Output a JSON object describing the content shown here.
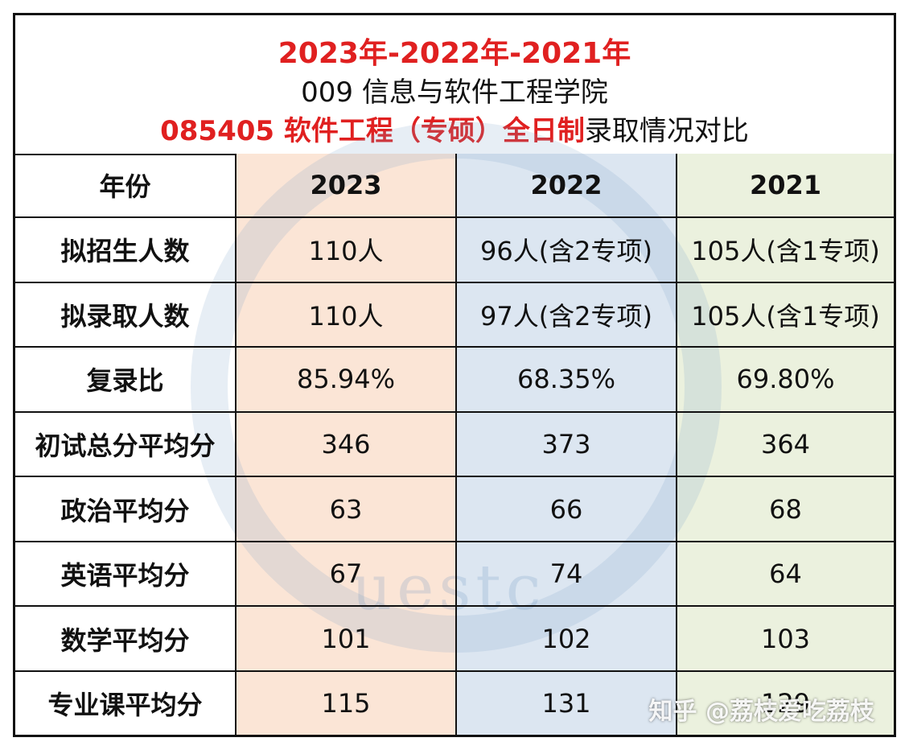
{
  "title": {
    "line1": "2023年-2022年-2021年",
    "line2": "009 信息与软件工程学院",
    "line3_red": "085405 软件工程（专硕）全日制",
    "line3_rest": "录取情况对比"
  },
  "watermark_text": "uestc",
  "attribution": "知乎 @荔枝爱吃荔枝",
  "colors": {
    "red": "#e02020",
    "col2023": "#fbe5d6",
    "col2022": "#dce6f1",
    "col2021": "#ebf1de"
  },
  "table": {
    "header": [
      "年份",
      "2023",
      "2022",
      "2021"
    ],
    "rows": [
      [
        "拟招生人数",
        "110人",
        "96人(含2专项)",
        "105人(含1专项)"
      ],
      [
        "拟录取人数",
        "110人",
        "97人(含2专项)",
        "105人(含1专项)"
      ],
      [
        "复录比",
        "85.94%",
        "68.35%",
        "69.80%"
      ],
      [
        "初试总分平均分",
        "346",
        "373",
        "364"
      ],
      [
        "政治平均分",
        "63",
        "66",
        "68"
      ],
      [
        "英语平均分",
        "67",
        "74",
        "64"
      ],
      [
        "数学平均分",
        "101",
        "102",
        "103"
      ],
      [
        "专业课平均分",
        "115",
        "131",
        "129"
      ]
    ]
  }
}
